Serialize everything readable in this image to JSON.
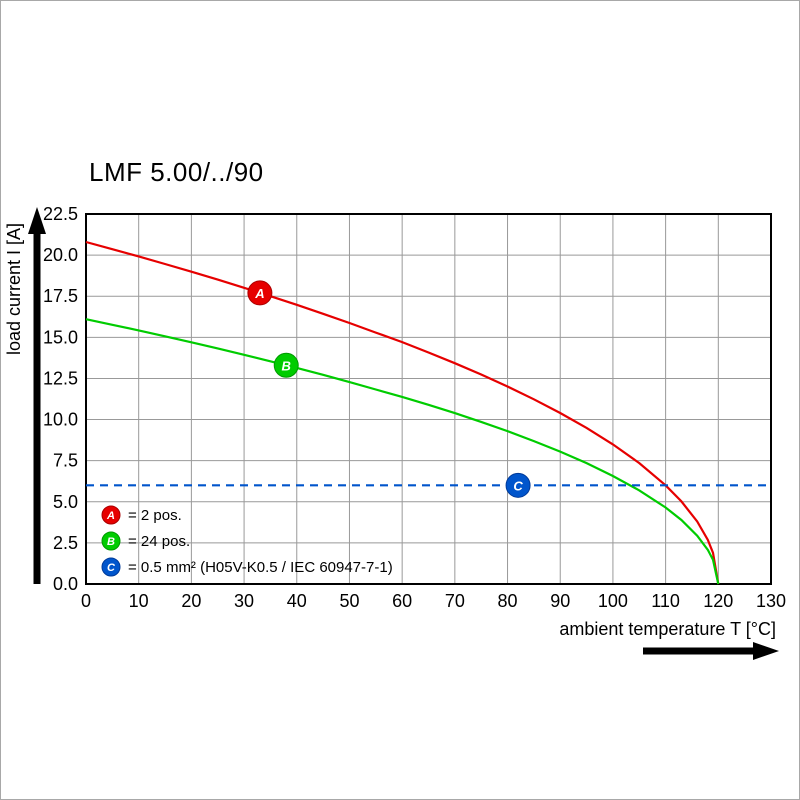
{
  "chart_data": {
    "type": "line",
    "title": "LMF 5.00/../90",
    "xlabel": "ambient temperature T [°C]",
    "ylabel": "load current I [A]",
    "xlim": [
      0,
      130
    ],
    "ylim": [
      0,
      22.5
    ],
    "x_ticks": [
      0,
      10,
      20,
      30,
      40,
      50,
      60,
      70,
      80,
      90,
      100,
      110,
      120,
      130
    ],
    "y_ticks": [
      0,
      2.5,
      5,
      7.5,
      10,
      12.5,
      15,
      17.5,
      20,
      22.5
    ],
    "grid": true,
    "legend_position": "bottom-left-inside",
    "series": [
      {
        "name": "A",
        "label": "= 2 pos.",
        "color": "#e60000",
        "stroke": "#aa0000",
        "dashed": false,
        "marker": {
          "x": 33,
          "y": 17.7
        },
        "points": [
          [
            0,
            20.8
          ],
          [
            5,
            20.36
          ],
          [
            10,
            19.92
          ],
          [
            15,
            19.46
          ],
          [
            20,
            18.99
          ],
          [
            25,
            18.51
          ],
          [
            30,
            18.01
          ],
          [
            35,
            17.5
          ],
          [
            40,
            16.98
          ],
          [
            45,
            16.43
          ],
          [
            50,
            15.87
          ],
          [
            55,
            15.29
          ],
          [
            60,
            14.71
          ],
          [
            65,
            14.08
          ],
          [
            70,
            13.43
          ],
          [
            75,
            12.74
          ],
          [
            80,
            12.01
          ],
          [
            85,
            11.23
          ],
          [
            90,
            10.4
          ],
          [
            95,
            9.49
          ],
          [
            100,
            8.49
          ],
          [
            105,
            7.35
          ],
          [
            110,
            6.0
          ],
          [
            113,
            5.02
          ],
          [
            116,
            3.8
          ],
          [
            118,
            2.69
          ],
          [
            119,
            1.9
          ],
          [
            120,
            0
          ]
        ]
      },
      {
        "name": "B",
        "label": "= 24 pos.",
        "color": "#00cc00",
        "stroke": "#009900",
        "dashed": false,
        "marker": {
          "x": 38,
          "y": 13.3
        },
        "points": [
          [
            0,
            16.1
          ],
          [
            5,
            15.76
          ],
          [
            10,
            15.42
          ],
          [
            15,
            15.06
          ],
          [
            20,
            14.7
          ],
          [
            25,
            14.33
          ],
          [
            30,
            13.94
          ],
          [
            35,
            13.54
          ],
          [
            40,
            13.14
          ],
          [
            45,
            12.72
          ],
          [
            50,
            12.28
          ],
          [
            55,
            11.83
          ],
          [
            60,
            11.38
          ],
          [
            65,
            10.9
          ],
          [
            70,
            10.39
          ],
          [
            75,
            9.86
          ],
          [
            80,
            9.3
          ],
          [
            85,
            8.69
          ],
          [
            90,
            8.05
          ],
          [
            95,
            7.35
          ],
          [
            100,
            6.57
          ],
          [
            105,
            5.69
          ],
          [
            110,
            4.65
          ],
          [
            113,
            3.89
          ],
          [
            116,
            2.94
          ],
          [
            118,
            2.08
          ],
          [
            119,
            1.47
          ],
          [
            120,
            0
          ]
        ]
      },
      {
        "name": "C",
        "label": "= 0.5 mm² (H05V-K0.5 / IEC 60947-7-1)",
        "color": "#0055cc",
        "stroke": "#003a99",
        "dashed": true,
        "marker": {
          "x": 82,
          "y": 6
        },
        "points": [
          [
            0,
            6
          ],
          [
            130,
            6
          ]
        ]
      }
    ]
  }
}
